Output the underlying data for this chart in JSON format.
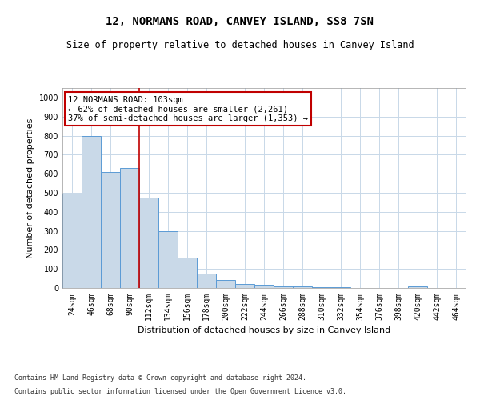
{
  "title": "12, NORMANS ROAD, CANVEY ISLAND, SS8 7SN",
  "subtitle": "Size of property relative to detached houses in Canvey Island",
  "xlabel": "Distribution of detached houses by size in Canvey Island",
  "ylabel": "Number of detached properties",
  "categories": [
    "24sqm",
    "46sqm",
    "68sqm",
    "90sqm",
    "112sqm",
    "134sqm",
    "156sqm",
    "178sqm",
    "200sqm",
    "222sqm",
    "244sqm",
    "266sqm",
    "288sqm",
    "310sqm",
    "332sqm",
    "354sqm",
    "376sqm",
    "398sqm",
    "420sqm",
    "442sqm",
    "464sqm"
  ],
  "values": [
    497,
    800,
    608,
    630,
    475,
    300,
    160,
    77,
    42,
    22,
    18,
    10,
    8,
    4,
    3,
    2,
    1,
    1,
    10,
    0,
    0
  ],
  "bar_color": "#c9d9e8",
  "bar_edge_color": "#5b9bd5",
  "vline_color": "#c00000",
  "vline_x_index": 3.5,
  "annotation_line1": "12 NORMANS ROAD: 103sqm",
  "annotation_line2": "← 62% of detached houses are smaller (2,261)",
  "annotation_line3": "37% of semi-detached houses are larger (1,353) →",
  "annotation_box_color": "#ffffff",
  "annotation_box_edge_color": "#c00000",
  "ylim": [
    0,
    1050
  ],
  "yticks": [
    0,
    100,
    200,
    300,
    400,
    500,
    600,
    700,
    800,
    900,
    1000
  ],
  "footer_line1": "Contains HM Land Registry data © Crown copyright and database right 2024.",
  "footer_line2": "Contains public sector information licensed under the Open Government Licence v3.0.",
  "bg_color": "#ffffff",
  "grid_color": "#c8d8e8",
  "title_fontsize": 10,
  "subtitle_fontsize": 8.5,
  "axis_label_fontsize": 8,
  "tick_fontsize": 7,
  "footer_fontsize": 6,
  "annotation_fontsize": 7.5
}
